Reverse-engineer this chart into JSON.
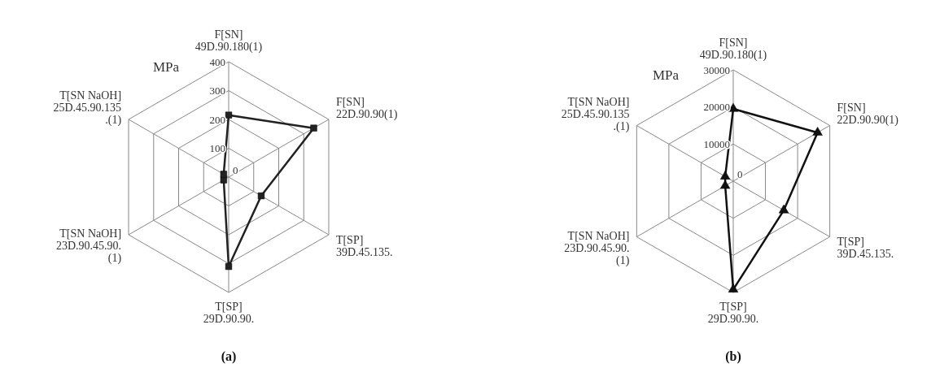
{
  "chart_data": [
    {
      "type": "radar",
      "title": "(a)",
      "ylabel": "MPa",
      "categories": [
        "F[SN] 49D.90.180(1)",
        "F[SN] 22D.90.90(1)",
        "T[SP] 39D.45.135.",
        "T[SP] 29D.90.90.",
        "T[SN NaOH] 23D.90.45.90.(1)",
        "T[SN NaOH] 25D.45.90.135.(1)"
      ],
      "series": [
        {
          "color": "#222222",
          "values": [
            215,
            340,
            130,
            310,
            20,
            20
          ]
        }
      ],
      "ylim": [
        0,
        400
      ],
      "yticks": [
        0,
        100,
        200,
        300,
        400
      ],
      "grid": true,
      "marker": "square"
    },
    {
      "type": "radar",
      "title": "(b)",
      "ylabel": "MPa",
      "categories": [
        "F[SN] 49D.90.180(1)",
        "F[SN] 22D.90.90(1)",
        "T[SP] 39D.45.135.",
        "T[SP] 29D.90.90.",
        "T[SN NaOH] 23D.90.45.90.(1)",
        "T[SN NaOH] 25D.45.90.135.(1)"
      ],
      "series": [
        {
          "color": "#111111",
          "values": [
            19500,
            26200,
            15700,
            29200,
            2500,
            2500
          ]
        }
      ],
      "ylim": [
        0,
        30000
      ],
      "yticks": [
        0,
        10000,
        20000,
        30000
      ],
      "grid": true,
      "marker": "triangle"
    }
  ]
}
